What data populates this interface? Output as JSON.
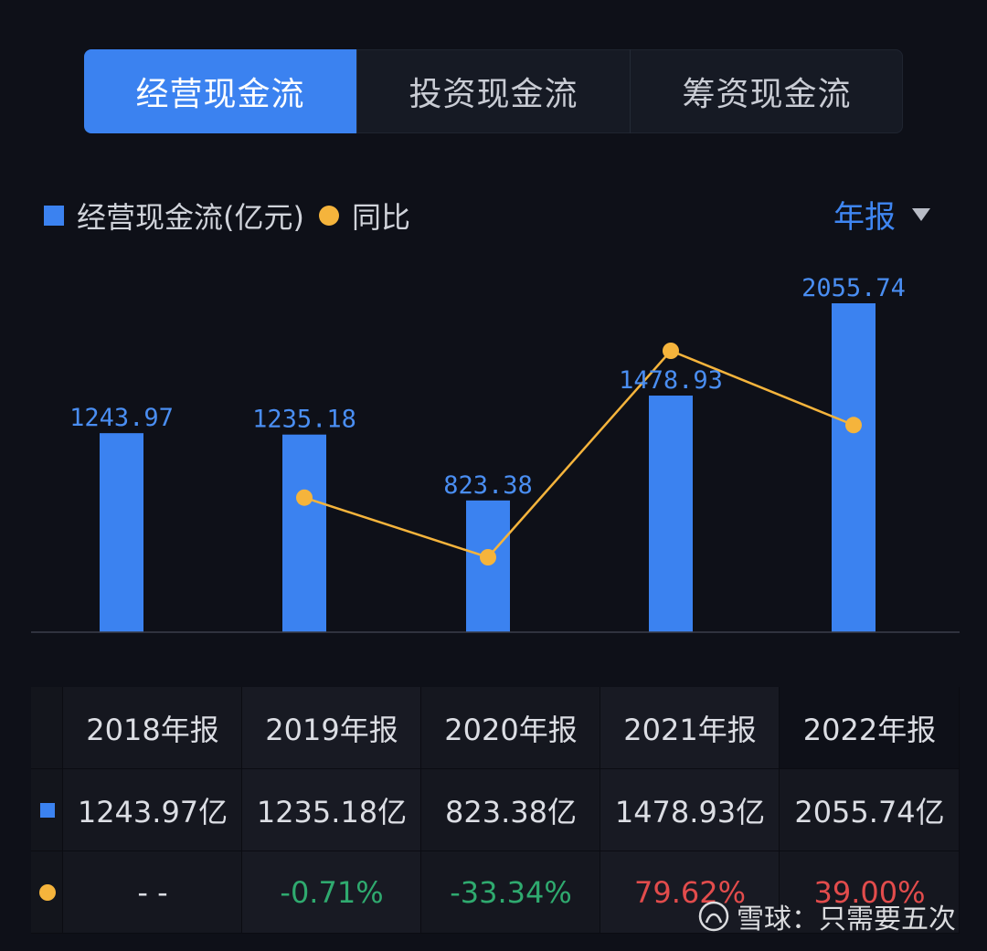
{
  "tabs": [
    {
      "label": "经营现金流",
      "active": true
    },
    {
      "label": "投资现金流",
      "active": false
    },
    {
      "label": "筹资现金流",
      "active": false
    }
  ],
  "legend": {
    "bar_label": "经营现金流(亿元)",
    "line_label": "同比"
  },
  "period_selector": {
    "label": "年报"
  },
  "chart_data": {
    "type": "bar",
    "categories": [
      "2018年报",
      "2019年报",
      "2020年报",
      "2021年报",
      "2022年报"
    ],
    "series": [
      {
        "name": "经营现金流(亿元)",
        "type": "bar",
        "values": [
          1243.97,
          1235.18,
          823.38,
          1478.93,
          2055.74
        ],
        "labels": [
          "1243.97",
          "1235.18",
          "823.38",
          "1478.93",
          "2055.74"
        ]
      },
      {
        "name": "同比",
        "type": "line",
        "values": [
          null,
          -0.71,
          -33.34,
          79.62,
          39.0
        ]
      }
    ],
    "colors": {
      "bar": "#3b82f0",
      "line": "#f5b43c"
    }
  },
  "table": {
    "headers": [
      "2018年报",
      "2019年报",
      "2020年报",
      "2021年报",
      "2022年报"
    ],
    "values_row": [
      "1243.97亿",
      "1235.18亿",
      "823.38亿",
      "1478.93亿",
      "2055.74亿"
    ],
    "yoy_row": [
      {
        "text": "- -",
        "sign": "none"
      },
      {
        "text": "-0.71%",
        "sign": "neg"
      },
      {
        "text": "-33.34%",
        "sign": "neg"
      },
      {
        "text": "79.62%",
        "sign": "pos"
      },
      {
        "text": "39.00%",
        "sign": "pos"
      }
    ]
  },
  "watermark": {
    "text": "雪球：只需要五次"
  },
  "colors": {
    "accent": "#3b82f0",
    "positive": "#e24c4c",
    "negative": "#2faa6f",
    "line": "#f5b43c"
  }
}
